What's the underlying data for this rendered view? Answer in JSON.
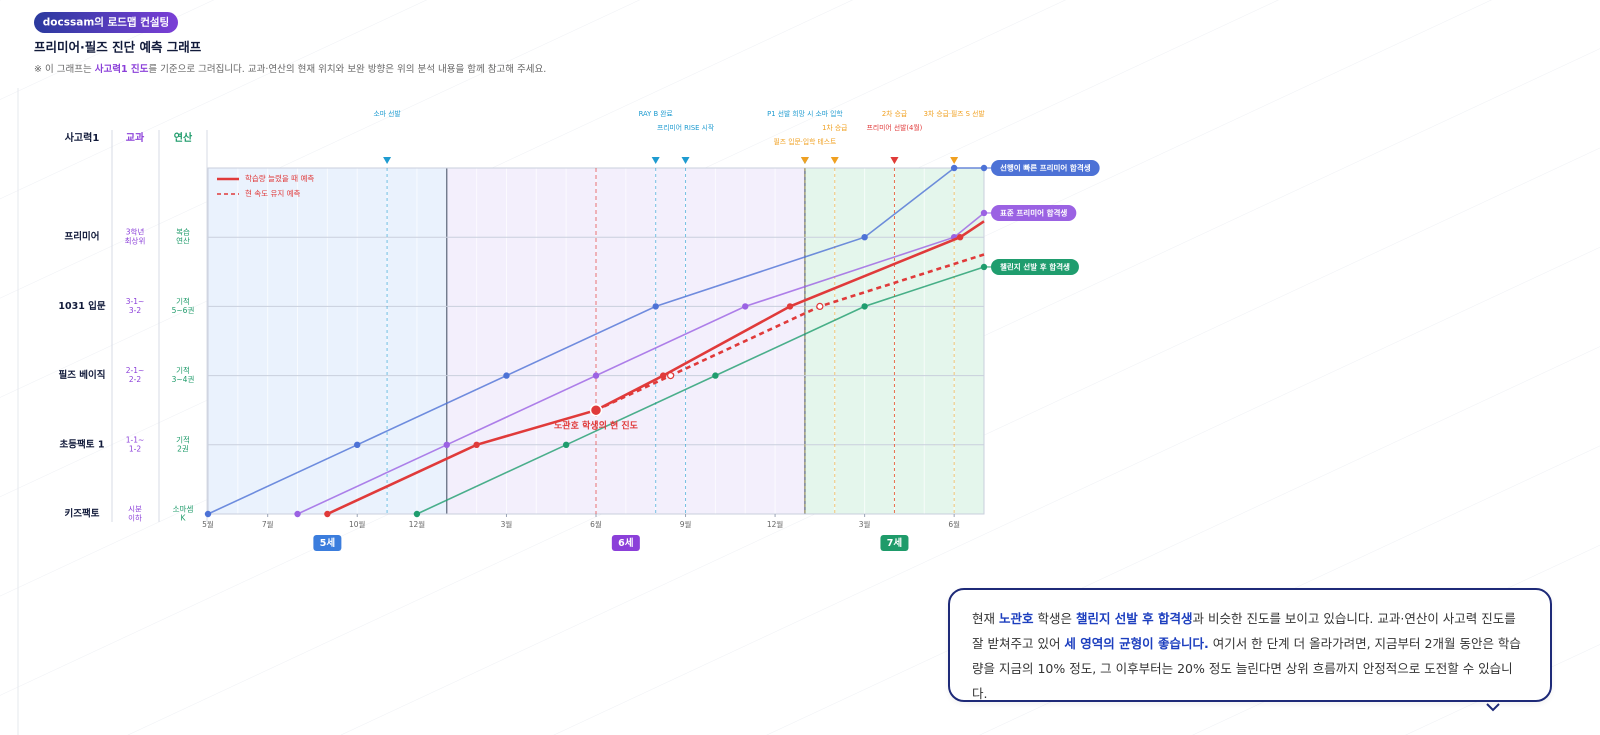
{
  "header": {
    "badge": "docssam의 로드맵 컨설팅",
    "title": "프리미어·필즈 진단 예측 그래프",
    "note": [
      {
        "text": "※ 이 그래프는 "
      },
      {
        "text": "사고력1 진도",
        "bold": true
      },
      {
        "text": "를 기준으로 그려집니다. 교과·연산의 현재 위치와 보완 방향은 위의 분석 내용을 함께 참고해 주세요."
      }
    ]
  },
  "chart_data": {
    "type": "line",
    "columns": [
      "사고력1",
      "교과",
      "연산"
    ],
    "levels": [
      {
        "value": 0,
        "labels": [
          "키즈팩토",
          [
            "시분",
            "이하"
          ],
          [
            "소마셈",
            "K"
          ]
        ]
      },
      {
        "value": 1,
        "labels": [
          "초등팩토 1",
          [
            "1-1~",
            "1-2"
          ],
          [
            "기적",
            "2권"
          ]
        ]
      },
      {
        "value": 2,
        "labels": [
          "필즈 베이직",
          [
            "2-1~",
            "2-2"
          ],
          [
            "기적",
            "3~4권"
          ]
        ]
      },
      {
        "value": 3,
        "labels": [
          "1031 입문",
          [
            "3-1~",
            "3-2"
          ],
          [
            "기적",
            "5~6권"
          ]
        ]
      },
      {
        "value": 4,
        "labels": [
          "프리미어",
          [
            "3학년",
            "최상위"
          ],
          [
            "복습",
            "연산"
          ]
        ]
      }
    ],
    "xlim": [
      0,
      26
    ],
    "ylim": [
      0,
      5
    ],
    "xticks": [
      {
        "value": 0,
        "label": "5월"
      },
      {
        "value": 2,
        "label": "7월"
      },
      {
        "value": 5,
        "label": "10월"
      },
      {
        "value": 7,
        "label": "12월"
      },
      {
        "value": 10,
        "label": "3월"
      },
      {
        "value": 13,
        "label": "6월"
      },
      {
        "value": 16,
        "label": "9월"
      },
      {
        "value": 19,
        "label": "12월"
      },
      {
        "value": 22,
        "label": "3월"
      },
      {
        "value": 25,
        "label": "6월"
      }
    ],
    "grid": true,
    "ages": [
      {
        "label": "5세",
        "range": [
          0,
          8
        ],
        "color": "#eaf2fd",
        "badge_color": "#3b7ddd"
      },
      {
        "label": "6세",
        "range": [
          8,
          20
        ],
        "color": "#f3effc",
        "badge_color": "#8b3fd9"
      },
      {
        "label": "7세",
        "range": [
          20,
          26
        ],
        "color": "#e4f6ec",
        "badge_color": "#1e9b6a"
      }
    ],
    "events": [
      {
        "label": "소마 선발",
        "x": 6,
        "color": "#1e9bd0"
      },
      {
        "label": "RAY B 완료",
        "x": 15,
        "color": "#1e9bd0"
      },
      {
        "label": "프리미어 RISE 시작",
        "x": 16,
        "color": "#1e9bd0"
      },
      {
        "label": "P1 선발 희망 시 소마 입학",
        "x": 20,
        "color": "#1e9bd0"
      },
      {
        "label": "1차 승급",
        "x": 21,
        "color": "#f0a020"
      },
      {
        "label": "필즈 입문·입학 테스트",
        "x": 20,
        "color": "#f0a020"
      },
      {
        "label": "2차 승급",
        "x": 23,
        "color": "#f0a020"
      },
      {
        "label": "프리미어 선발(4월)",
        "x": 23,
        "color": "#e03a3a"
      },
      {
        "label": "3차 승급·필즈 S 선발",
        "x": 25,
        "color": "#f0a020"
      }
    ],
    "series": [
      {
        "name": "선행이 빠른 프리미어 합격생",
        "color": "#4d72d6",
        "end_label": true,
        "x": [
          0,
          5,
          10,
          15,
          22,
          25,
          26
        ],
        "values": [
          0,
          1,
          2,
          3,
          4,
          5,
          5
        ]
      },
      {
        "name": "표준 프리미어 합격생",
        "color": "#9b62e3",
        "end_label": true,
        "x": [
          3,
          8,
          13,
          18,
          25,
          26
        ],
        "values": [
          0,
          1,
          2,
          3,
          4,
          4.35
        ]
      },
      {
        "name": "챌린지 선발 후 합격생",
        "color": "#1f9d6e",
        "end_label": true,
        "x": [
          7,
          12,
          17,
          22,
          26
        ],
        "values": [
          0,
          1,
          2,
          3,
          3.57
        ]
      },
      {
        "name": "학습량 늘렸을 때 예측",
        "color": "#e03a3a",
        "end_label": false,
        "x": [
          4,
          9,
          13,
          15.25,
          19.5,
          25.2,
          26
        ],
        "values": [
          0,
          1,
          1.5,
          2,
          3,
          4,
          4.23
        ]
      },
      {
        "name": "현 속도 유지 예측",
        "color": "#e03a3a",
        "end_label": false,
        "dashed": true,
        "x": [
          13,
          15.5,
          20.5,
          26
        ],
        "values": [
          1.5,
          2,
          3,
          3.75
        ]
      }
    ],
    "current": {
      "label": "노관호 학생의 현 진도",
      "x": 13,
      "y": 1.5,
      "color": "#e03a3a"
    }
  },
  "summary": [
    {
      "text": "현재 "
    },
    {
      "text": "노관호",
      "bold": true
    },
    {
      "text": " 학생은 "
    },
    {
      "text": "챌린지 선발 후 합격생",
      "bold": true
    },
    {
      "text": "과 비슷한 진도를 보이고 있습니다. 교과·연산이 사고력 진도를 잘 받쳐주고 있어 "
    },
    {
      "text": "세 영역의 균형이 좋습니다.",
      "bold": true
    },
    {
      "text": " 여기서 한 단계 더 올라가려면, 지금부터 2개월 동안은 학습량을 지금의 10% 정도, 그 이후부터는 20% 정도 늘린다면 상위 흐름까지 안정적으로 도전할 수 있습니다."
    }
  ]
}
